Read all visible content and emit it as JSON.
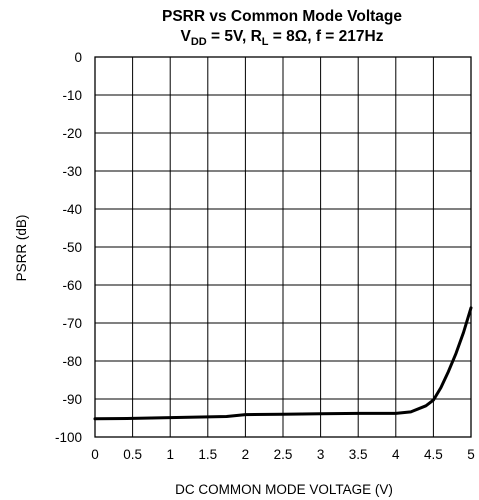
{
  "chart_data": {
    "type": "line",
    "title": {
      "line1": "PSRR vs Common Mode Voltage",
      "vdd_prefix": "V",
      "vdd_sub": "DD",
      "vdd_rest": " = 5V, R",
      "rl_sub": "L",
      "rl_rest": " = 8Ω, f = 217Hz"
    },
    "xlabel": "DC COMMON MODE VOLTAGE (V)",
    "ylabel": "PSRR (dB)",
    "xlim": [
      0,
      5
    ],
    "ylim": [
      -100,
      0
    ],
    "x_ticks": [
      "0",
      "0.5",
      "1",
      "1.5",
      "2",
      "2.5",
      "3",
      "3.5",
      "4",
      "4.5",
      "5"
    ],
    "y_ticks": [
      "0",
      "-10",
      "-20",
      "-30",
      "-40",
      "-50",
      "-60",
      "-70",
      "-80",
      "-90",
      "-100"
    ],
    "grid": true,
    "series": [
      {
        "x": [
          0,
          0.5,
          1.0,
          1.5,
          1.75,
          2.0,
          2.5,
          3.0,
          3.5,
          4.0,
          4.2,
          4.4,
          4.5,
          4.6,
          4.7,
          4.8,
          4.9,
          5.0
        ],
        "y": [
          -95.2,
          -95.1,
          -94.9,
          -94.7,
          -94.6,
          -94.1,
          -94.0,
          -93.9,
          -93.8,
          -93.8,
          -93.4,
          -91.8,
          -90.3,
          -87.0,
          -82.8,
          -78.0,
          -72.5,
          -66.0
        ]
      }
    ]
  }
}
